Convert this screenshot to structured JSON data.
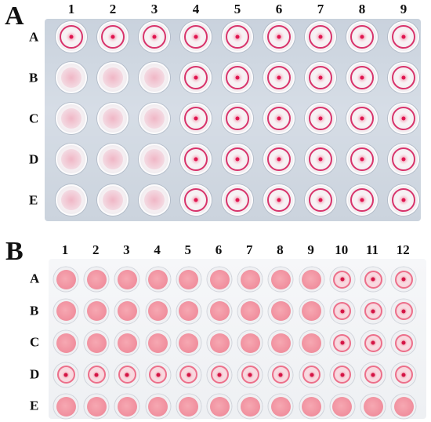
{
  "panel_a": {
    "label": "A",
    "columns": [
      "1",
      "2",
      "3",
      "4",
      "5",
      "6",
      "7",
      "8",
      "9"
    ],
    "rows": [
      "A",
      "B",
      "C",
      "D",
      "E"
    ],
    "wells": [
      [
        "dot",
        "dot",
        "dot",
        "dot",
        "dot",
        "dot",
        "dot",
        "dot",
        "dot"
      ],
      [
        "haze",
        "haze",
        "haze",
        "dot",
        "dot",
        "dot",
        "dot",
        "dot",
        "dot"
      ],
      [
        "haze",
        "haze",
        "haze",
        "dot",
        "dot",
        "dot",
        "dot",
        "dot",
        "dot"
      ],
      [
        "haze",
        "haze",
        "haze",
        "dot",
        "dot",
        "dot",
        "dot",
        "dot",
        "dot"
      ],
      [
        "haze",
        "haze",
        "haze",
        "dot",
        "dot",
        "dot",
        "dot",
        "dot",
        "dot"
      ]
    ]
  },
  "panel_b": {
    "label": "B",
    "columns": [
      "1",
      "2",
      "3",
      "4",
      "5",
      "6",
      "7",
      "8",
      "9",
      "10",
      "11",
      "12"
    ],
    "rows": [
      "A",
      "B",
      "C",
      "D",
      "E"
    ],
    "wells": [
      [
        "fill",
        "fill",
        "fill",
        "fill",
        "fill",
        "fill",
        "fill",
        "fill",
        "fill",
        "dot",
        "dot",
        "dot"
      ],
      [
        "fill",
        "fill",
        "fill",
        "fill",
        "fill",
        "fill",
        "fill",
        "fill",
        "fill",
        "dot",
        "dot",
        "dot"
      ],
      [
        "fill",
        "fill",
        "fill",
        "fill",
        "fill",
        "fill",
        "fill",
        "fill",
        "fill",
        "dot",
        "dot",
        "dot"
      ],
      [
        "dot",
        "dot",
        "dot",
        "dot",
        "dot",
        "dot",
        "dot",
        "dot",
        "dot",
        "dot",
        "dot",
        "dot"
      ],
      [
        "fill",
        "fill",
        "fill",
        "fill",
        "fill",
        "fill",
        "fill",
        "fill",
        "fill",
        "fill",
        "fill",
        "fill"
      ]
    ]
  },
  "colors": {
    "button_red": "#e0154f",
    "ring_red": "#d8336b",
    "mat_pink": "#f08e9d",
    "plate_a_bg": "#d6dde6",
    "plate_b_bg": "#f3f4f6"
  }
}
